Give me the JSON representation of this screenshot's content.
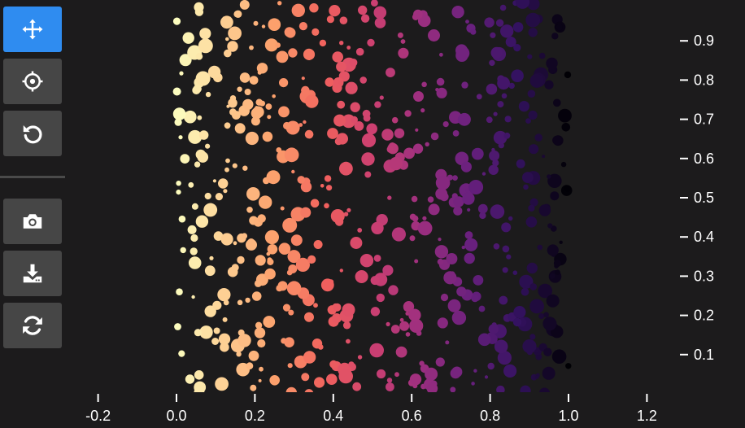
{
  "toolbar": {
    "tools": [
      {
        "name": "pan",
        "icon": "move-arrows-icon",
        "active": true
      },
      {
        "name": "crosshair",
        "icon": "crosshair-icon",
        "active": false
      },
      {
        "name": "reset",
        "icon": "reset-arrow-icon",
        "active": false
      },
      {
        "name": "screenshot",
        "icon": "camera-icon",
        "active": false
      },
      {
        "name": "download",
        "icon": "download-icon",
        "active": false
      },
      {
        "name": "refresh",
        "icon": "refresh-icon",
        "active": false
      }
    ],
    "active_color": "#2f8cf0",
    "button_color": "#464646"
  },
  "chart_data": {
    "type": "scatter",
    "title": "",
    "xlabel": "",
    "ylabel": "",
    "xlim": [
      -0.2,
      1.2
    ],
    "ylim": [
      0.02,
      1.0
    ],
    "x_ticks": [
      -0.2,
      0.0,
      0.2,
      0.4,
      0.6,
      0.8,
      1.0,
      1.2
    ],
    "x_tick_labels": [
      "-0.2",
      "0.0",
      "0.2",
      "0.4",
      "0.6",
      "0.8",
      "1.0",
      "1.2"
    ],
    "y_ticks": [
      0.1,
      0.2,
      0.3,
      0.4,
      0.5,
      0.6,
      0.7,
      0.8,
      0.9
    ],
    "y_tick_labels": [
      "0.1",
      "0.2",
      "0.3",
      "0.4",
      "0.5",
      "0.6",
      "0.7",
      "0.8",
      "0.9"
    ],
    "y_axis_side": "right",
    "grid": false,
    "background": "#1c1b1c",
    "colormap": "magma",
    "color_by": "x",
    "point_count": 600,
    "x_range": [
      0.0,
      1.0
    ],
    "y_range": [
      0.0,
      1.0
    ],
    "size_range": [
      2,
      9
    ]
  }
}
